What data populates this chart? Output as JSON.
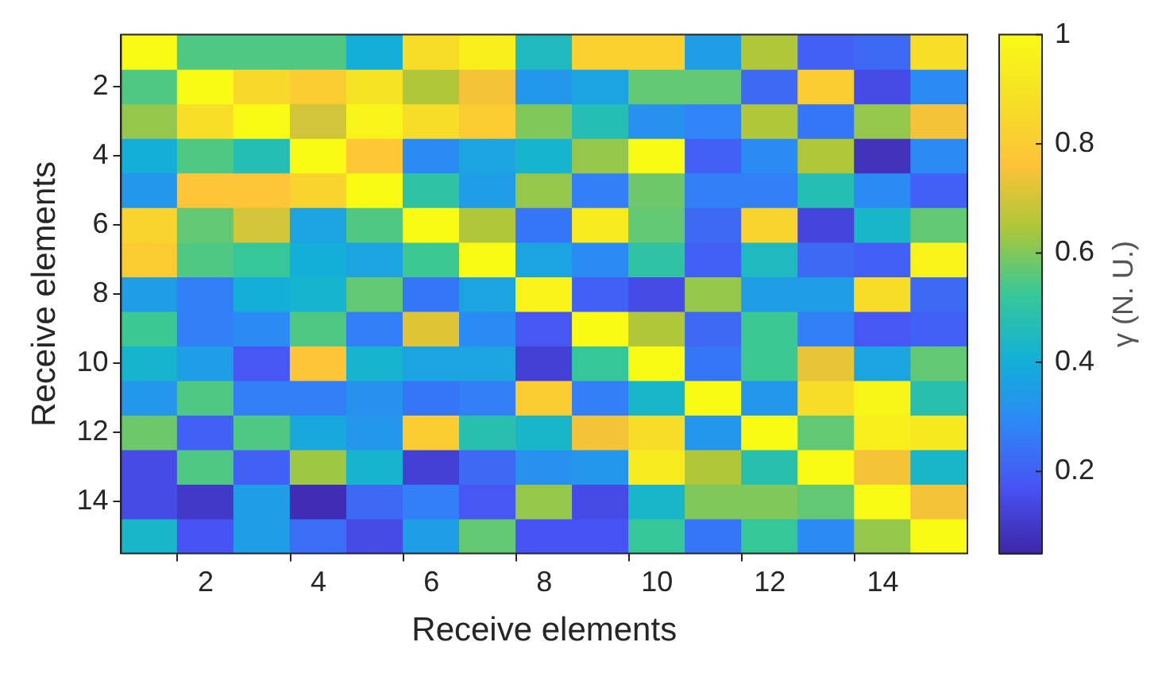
{
  "chart_data": {
    "type": "heatmap",
    "xlabel": "Receive elements",
    "ylabel": "Receive elements",
    "clabel": "γ (N. U.)",
    "categories": [
      null,
      "2",
      null,
      "4",
      null,
      "6",
      null,
      "8",
      null,
      "10",
      null,
      "12",
      null,
      "14",
      null
    ],
    "y_categories": [
      null,
      "2",
      null,
      "4",
      null,
      "6",
      null,
      "8",
      null,
      "10",
      null,
      "12",
      null,
      "14",
      null
    ],
    "cells": [
      [
        1.0,
        0.55,
        0.55,
        0.55,
        0.4,
        0.87,
        0.95,
        0.45,
        0.82,
        0.82,
        0.35,
        0.65,
        0.2,
        0.22,
        0.88
      ],
      [
        0.55,
        1.0,
        0.85,
        0.8,
        0.9,
        0.65,
        0.75,
        0.33,
        0.37,
        0.57,
        0.57,
        0.22,
        0.8,
        0.15,
        0.3
      ],
      [
        0.62,
        0.88,
        1.0,
        0.7,
        0.97,
        0.87,
        0.8,
        0.6,
        0.47,
        0.32,
        0.28,
        0.65,
        0.25,
        0.62,
        0.75
      ],
      [
        0.4,
        0.55,
        0.47,
        1.0,
        0.78,
        0.3,
        0.37,
        0.42,
        0.62,
        1.0,
        0.2,
        0.3,
        0.65,
        0.08,
        0.3
      ],
      [
        0.33,
        0.77,
        0.77,
        0.83,
        1.0,
        0.5,
        0.35,
        0.62,
        0.27,
        0.58,
        0.27,
        0.27,
        0.47,
        0.3,
        0.2
      ],
      [
        0.83,
        0.57,
        0.7,
        0.37,
        0.55,
        1.0,
        0.65,
        0.25,
        0.93,
        0.57,
        0.22,
        0.83,
        0.13,
        0.43,
        0.57
      ],
      [
        0.8,
        0.55,
        0.52,
        0.4,
        0.37,
        0.53,
        1.0,
        0.37,
        0.3,
        0.5,
        0.2,
        0.45,
        0.22,
        0.2,
        0.97
      ],
      [
        0.35,
        0.27,
        0.4,
        0.42,
        0.57,
        0.25,
        0.37,
        0.97,
        0.2,
        0.15,
        0.62,
        0.35,
        0.35,
        0.87,
        0.22
      ],
      [
        0.53,
        0.27,
        0.3,
        0.55,
        0.27,
        0.72,
        0.3,
        0.18,
        1.0,
        0.65,
        0.22,
        0.53,
        0.27,
        0.18,
        0.2
      ],
      [
        0.42,
        0.35,
        0.18,
        0.77,
        0.42,
        0.37,
        0.37,
        0.12,
        0.52,
        1.0,
        0.25,
        0.53,
        0.73,
        0.37,
        0.57
      ],
      [
        0.33,
        0.55,
        0.27,
        0.27,
        0.32,
        0.25,
        0.27,
        0.8,
        0.27,
        0.43,
        1.0,
        0.33,
        0.87,
        0.98,
        0.48
      ],
      [
        0.58,
        0.2,
        0.55,
        0.38,
        0.33,
        0.8,
        0.48,
        0.43,
        0.75,
        0.87,
        0.33,
        1.0,
        0.57,
        0.95,
        0.92
      ],
      [
        0.15,
        0.55,
        0.2,
        0.63,
        0.42,
        0.12,
        0.22,
        0.32,
        0.33,
        0.93,
        0.65,
        0.48,
        1.0,
        0.75,
        0.43
      ],
      [
        0.15,
        0.1,
        0.35,
        0.07,
        0.22,
        0.27,
        0.18,
        0.62,
        0.15,
        0.43,
        0.6,
        0.6,
        0.57,
        1.0,
        0.75
      ],
      [
        0.43,
        0.17,
        0.35,
        0.23,
        0.15,
        0.35,
        0.57,
        0.17,
        0.17,
        0.52,
        0.25,
        0.52,
        0.3,
        0.62,
        1.0
      ]
    ],
    "clim": [
      0.05,
      1
    ],
    "cticks": [
      0.2,
      0.4,
      0.6,
      0.8,
      1
    ]
  }
}
